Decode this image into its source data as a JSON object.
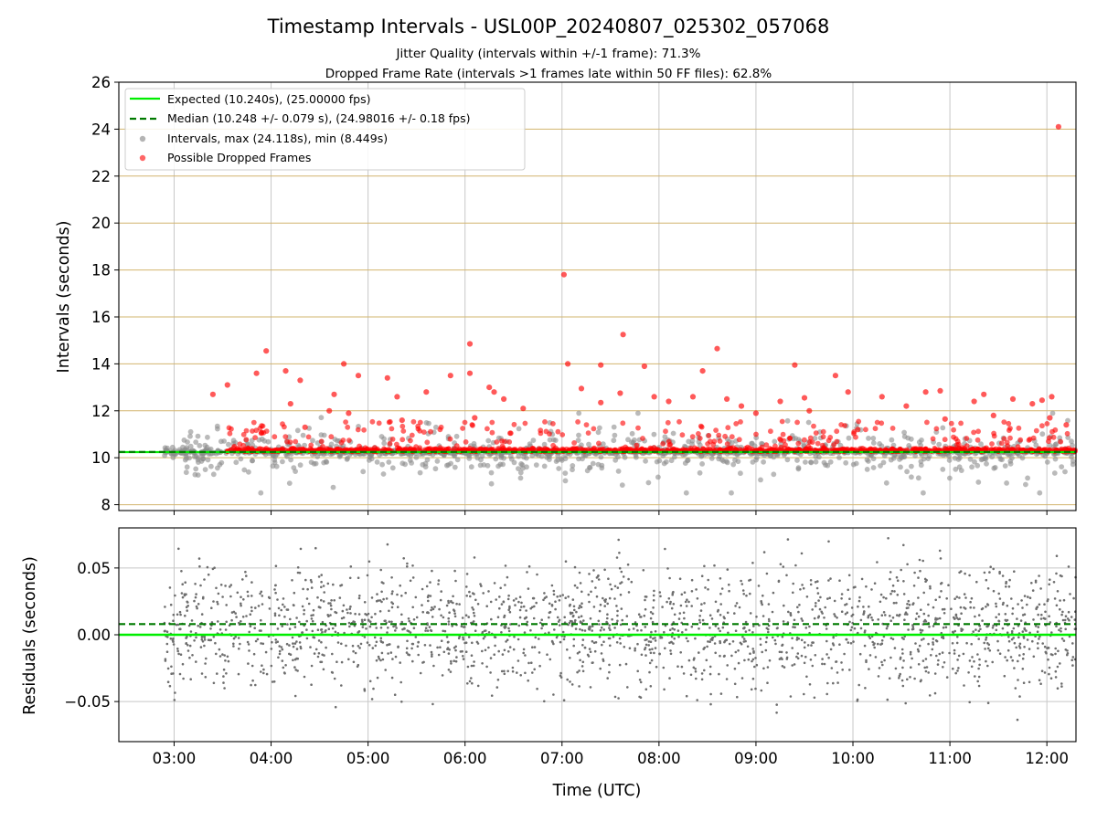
{
  "title": "Timestamp Intervals - USL00P_20240807_025302_057068",
  "subtitle_1": "Jitter Quality (intervals within +/-1 frame): 71.3%",
  "subtitle_2": "Dropped Frame Rate (intervals >1 frames late within 50 FF files): 62.8%",
  "colors": {
    "expected": "#00ee00",
    "median": "#007a00",
    "interval": "#8c8c8c",
    "dropped": "#ff0000",
    "hgrid_top": "#d2b46e",
    "grid": "#c8c8c8",
    "residual": "#6e6e6e"
  },
  "chart_data": [
    {
      "type": "scatter",
      "ylabel": "Intervals (seconds)",
      "ylim": [
        7.75,
        26.0
      ],
      "xlim": [
        2.43,
        12.3
      ],
      "yticks": [
        "8",
        "10",
        "12",
        "14",
        "16",
        "18",
        "20",
        "22",
        "24",
        "26"
      ],
      "grid": true,
      "legend_position": "top-left",
      "legend": [
        "Expected (10.240s), (25.00000 fps)",
        "Median (10.248 +/- 0.079 s), (24.98016 +/- 0.18 fps)",
        "Intervals, max (24.118s), min (8.449s)",
        "Possible Dropped Frames"
      ],
      "expected_interval": 10.24,
      "median_interval": 10.248,
      "max_interval": 24.118,
      "min_interval": 8.449,
      "data_start_hour": 2.9,
      "data_end_hour": 12.3,
      "dropped_outliers": [
        {
          "x": 3.4,
          "y": 12.7
        },
        {
          "x": 3.55,
          "y": 13.1
        },
        {
          "x": 3.85,
          "y": 13.6
        },
        {
          "x": 3.95,
          "y": 14.55
        },
        {
          "x": 3.9,
          "y": 11.05
        },
        {
          "x": 4.15,
          "y": 13.7
        },
        {
          "x": 4.2,
          "y": 12.3
        },
        {
          "x": 4.3,
          "y": 13.3
        },
        {
          "x": 4.35,
          "y": 11.3
        },
        {
          "x": 4.6,
          "y": 12.0
        },
        {
          "x": 4.65,
          "y": 12.7
        },
        {
          "x": 4.75,
          "y": 14.0
        },
        {
          "x": 4.8,
          "y": 11.9
        },
        {
          "x": 4.9,
          "y": 13.5
        },
        {
          "x": 5.2,
          "y": 13.4
        },
        {
          "x": 5.3,
          "y": 12.6
        },
        {
          "x": 5.35,
          "y": 11.6
        },
        {
          "x": 5.6,
          "y": 12.8
        },
        {
          "x": 5.85,
          "y": 13.5
        },
        {
          "x": 6.05,
          "y": 14.85
        },
        {
          "x": 6.05,
          "y": 13.6
        },
        {
          "x": 6.1,
          "y": 11.7
        },
        {
          "x": 6.25,
          "y": 13.0
        },
        {
          "x": 6.3,
          "y": 12.8
        },
        {
          "x": 6.4,
          "y": 12.5
        },
        {
          "x": 6.6,
          "y": 12.1
        },
        {
          "x": 7.02,
          "y": 17.8
        },
        {
          "x": 7.06,
          "y": 14.0
        },
        {
          "x": 7.2,
          "y": 12.95
        },
        {
          "x": 7.4,
          "y": 13.95
        },
        {
          "x": 7.4,
          "y": 12.35
        },
        {
          "x": 7.6,
          "y": 12.75
        },
        {
          "x": 7.63,
          "y": 15.25
        },
        {
          "x": 7.85,
          "y": 13.9
        },
        {
          "x": 7.95,
          "y": 12.6
        },
        {
          "x": 8.1,
          "y": 12.4
        },
        {
          "x": 8.35,
          "y": 12.6
        },
        {
          "x": 8.45,
          "y": 13.7
        },
        {
          "x": 8.6,
          "y": 14.65
        },
        {
          "x": 8.7,
          "y": 12.5
        },
        {
          "x": 8.85,
          "y": 12.2
        },
        {
          "x": 9.0,
          "y": 11.9
        },
        {
          "x": 9.25,
          "y": 12.4
        },
        {
          "x": 9.4,
          "y": 13.95
        },
        {
          "x": 9.5,
          "y": 12.55
        },
        {
          "x": 9.55,
          "y": 12.0
        },
        {
          "x": 9.82,
          "y": 13.5
        },
        {
          "x": 9.95,
          "y": 12.8
        },
        {
          "x": 10.05,
          "y": 11.2
        },
        {
          "x": 10.3,
          "y": 12.6
        },
        {
          "x": 10.55,
          "y": 12.2
        },
        {
          "x": 10.75,
          "y": 12.8
        },
        {
          "x": 10.9,
          "y": 12.85
        },
        {
          "x": 10.95,
          "y": 11.65
        },
        {
          "x": 11.25,
          "y": 12.4
        },
        {
          "x": 11.35,
          "y": 12.7
        },
        {
          "x": 11.45,
          "y": 11.8
        },
        {
          "x": 11.65,
          "y": 12.5
        },
        {
          "x": 11.85,
          "y": 12.3
        },
        {
          "x": 11.95,
          "y": 12.45
        },
        {
          "x": 12.05,
          "y": 12.6
        },
        {
          "x": 12.03,
          "y": 11.7
        },
        {
          "x": 12.12,
          "y": 24.1
        },
        {
          "x": 12.2,
          "y": 11.4
        }
      ]
    },
    {
      "type": "scatter",
      "xlabel": "Time (UTC)",
      "ylabel": "Residuals (seconds)",
      "ylim": [
        -0.08,
        0.08
      ],
      "xlim": [
        2.43,
        12.3
      ],
      "yticks": [
        "0.05",
        "0.00",
        "−0.05"
      ],
      "xticks": [
        "03:00",
        "04:00",
        "05:00",
        "06:00",
        "07:00",
        "08:00",
        "09:00",
        "10:00",
        "11:00",
        "12:00"
      ],
      "grid": true,
      "expected_residual": 0.0,
      "median_residual": 0.008
    }
  ]
}
